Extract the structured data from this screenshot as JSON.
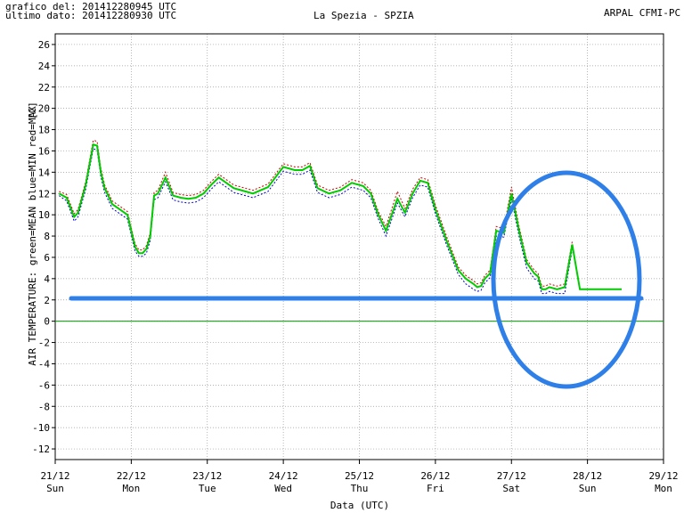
{
  "header": {
    "line1_label": "grafico del:",
    "line1_value": "201412280945 UTC",
    "line2_label": "ultimo dato:",
    "line2_value": "201412280930 UTC",
    "station": "La Spezia - SPZIA",
    "source": "ARPAL CFMI-PC"
  },
  "colors": {
    "mean": "#00cc00",
    "min": "#0000cc",
    "max": "#cc0000",
    "zero_line": "#009900",
    "grid": "#999999",
    "annotation": "#2f7fe8"
  },
  "chart_data": {
    "type": "line",
    "title": "La Spezia - SPZIA",
    "xlabel": "Data (UTC)",
    "ylabel": "AIR TEMPERATURE: green=MEAN  blue=MIN  red=MAX",
    "unit_label": "[C]",
    "ylim": [
      -13,
      27
    ],
    "yticks": [
      -12,
      -10,
      -8,
      -6,
      -4,
      -2,
      0,
      2,
      4,
      6,
      8,
      10,
      12,
      14,
      16,
      18,
      20,
      22,
      24,
      26
    ],
    "xlim": [
      0,
      8
    ],
    "xticks": [
      {
        "date": "21/12",
        "day": "Sun"
      },
      {
        "date": "22/12",
        "day": "Mon"
      },
      {
        "date": "23/12",
        "day": "Tue"
      },
      {
        "date": "24/12",
        "day": "Wed"
      },
      {
        "date": "25/12",
        "day": "Thu"
      },
      {
        "date": "26/12",
        "day": "Fri"
      },
      {
        "date": "27/12",
        "day": "Sat"
      },
      {
        "date": "28/12",
        "day": "Sun"
      },
      {
        "date": "29/12",
        "day": "Mon"
      }
    ],
    "grid": true,
    "series": [
      {
        "name": "MEAN",
        "color": "#00cc00",
        "x": [
          0.05,
          0.15,
          0.25,
          0.3,
          0.4,
          0.5,
          0.55,
          0.6,
          0.65,
          0.75,
          0.85,
          0.95,
          1.05,
          1.1,
          1.15,
          1.2,
          1.25,
          1.3,
          1.35,
          1.45,
          1.55,
          1.65,
          1.75,
          1.85,
          1.95,
          2.05,
          2.15,
          2.25,
          2.35,
          2.5,
          2.6,
          2.8,
          3.0,
          3.15,
          3.25,
          3.35,
          3.45,
          3.6,
          3.75,
          3.9,
          4.05,
          4.15,
          4.25,
          4.35,
          4.5,
          4.6,
          4.7,
          4.8,
          4.9,
          5.0,
          5.15,
          5.3,
          5.4,
          5.5,
          5.55,
          5.6,
          5.65,
          5.72,
          5.8,
          5.9,
          6.0,
          6.1,
          6.2,
          6.3,
          6.35,
          6.4,
          6.45,
          6.5,
          6.6,
          6.7,
          6.8,
          6.9,
          7.0,
          7.1,
          7.2,
          7.3,
          7.4,
          7.45
        ],
        "values": [
          12.0,
          11.6,
          9.8,
          10.2,
          12.8,
          16.6,
          16.5,
          14.0,
          12.5,
          11.0,
          10.5,
          10.0,
          7.0,
          6.4,
          6.4,
          6.8,
          8.0,
          11.8,
          12.0,
          13.5,
          11.8,
          11.6,
          11.5,
          11.6,
          12.0,
          12.8,
          13.5,
          13.0,
          12.5,
          12.2,
          12.0,
          12.6,
          14.5,
          14.2,
          14.2,
          14.6,
          12.5,
          12.0,
          12.3,
          13.0,
          12.7,
          12.0,
          10.0,
          8.5,
          11.5,
          10.2,
          12.0,
          13.2,
          13.0,
          10.5,
          7.5,
          4.8,
          4.0,
          3.5,
          3.2,
          3.3,
          4.0,
          4.5,
          8.5,
          8.3,
          12.0,
          8.5,
          5.5,
          4.5,
          4.2,
          3.0,
          3.0,
          3.2,
          3.0,
          3.2,
          7.2,
          3.0,
          3.0,
          3.0,
          3.0,
          3.0,
          3.0,
          3.0
        ],
        "values_note_trimmed": false
      },
      {
        "name": "MIN",
        "color": "#0000cc",
        "x": [
          0.05,
          0.15,
          0.25,
          0.3,
          0.4,
          0.5,
          0.55,
          0.6,
          0.65,
          0.75,
          0.85,
          0.95,
          1.05,
          1.1,
          1.15,
          1.2,
          1.25,
          1.3,
          1.35,
          1.45,
          1.55,
          1.65,
          1.75,
          1.85,
          1.95,
          2.05,
          2.15,
          2.25,
          2.35,
          2.5,
          2.6,
          2.8,
          3.0,
          3.15,
          3.25,
          3.35,
          3.45,
          3.6,
          3.75,
          3.9,
          4.05,
          4.15,
          4.25,
          4.35,
          4.5,
          4.6,
          4.7,
          4.8,
          4.9,
          5.0,
          5.15,
          5.3,
          5.4,
          5.5,
          5.55,
          5.6,
          5.65,
          5.72,
          5.8,
          5.9,
          6.0,
          6.1,
          6.2,
          6.3,
          6.35,
          6.4,
          6.45,
          6.5,
          6.6,
          6.7,
          6.8
        ],
        "values": [
          11.8,
          11.3,
          9.4,
          9.8,
          12.4,
          16.2,
          16.1,
          13.6,
          12.1,
          10.6,
          10.1,
          9.6,
          6.6,
          6.1,
          6.1,
          6.4,
          7.6,
          11.4,
          11.6,
          13.1,
          11.4,
          11.2,
          11.1,
          11.2,
          11.6,
          12.4,
          13.1,
          12.6,
          12.1,
          11.8,
          11.6,
          12.2,
          14.1,
          13.8,
          13.8,
          14.2,
          12.1,
          11.6,
          11.9,
          12.6,
          12.3,
          11.6,
          9.6,
          8.0,
          11.1,
          9.8,
          11.6,
          12.8,
          12.6,
          10.1,
          7.1,
          4.4,
          3.5,
          3.0,
          2.8,
          2.9,
          3.6,
          4.1,
          8.0,
          7.9,
          11.5,
          8.0,
          5.0,
          4.0,
          3.8,
          2.6,
          2.6,
          2.8,
          2.6,
          2.6,
          6.8
        ]
      },
      {
        "name": "MAX",
        "color": "#cc0000",
        "x": [
          0.05,
          0.15,
          0.25,
          0.3,
          0.4,
          0.5,
          0.55,
          0.6,
          0.65,
          0.75,
          0.85,
          0.95,
          1.05,
          1.1,
          1.15,
          1.2,
          1.25,
          1.3,
          1.35,
          1.45,
          1.55,
          1.65,
          1.75,
          1.85,
          1.95,
          2.05,
          2.15,
          2.25,
          2.35,
          2.5,
          2.6,
          2.8,
          3.0,
          3.15,
          3.25,
          3.35,
          3.45,
          3.6,
          3.75,
          3.9,
          4.05,
          4.15,
          4.25,
          4.35,
          4.5,
          4.6,
          4.7,
          4.8,
          4.9,
          5.0,
          5.15,
          5.3,
          5.4,
          5.5,
          5.55,
          5.6,
          5.65,
          5.72,
          5.8,
          5.9,
          6.0,
          6.1,
          6.2,
          6.3,
          6.35,
          6.4,
          6.45,
          6.5,
          6.6,
          6.7,
          6.8
        ],
        "values": [
          12.2,
          11.9,
          10.1,
          10.5,
          13.1,
          17.0,
          16.9,
          14.4,
          12.8,
          11.3,
          10.8,
          10.3,
          7.3,
          6.7,
          6.7,
          7.1,
          8.3,
          12.1,
          12.3,
          14.0,
          12.1,
          11.9,
          11.8,
          11.9,
          12.3,
          13.1,
          13.8,
          13.3,
          12.8,
          12.5,
          12.3,
          12.9,
          14.8,
          14.5,
          14.5,
          14.9,
          12.8,
          12.3,
          12.6,
          13.3,
          13.0,
          12.3,
          10.3,
          8.9,
          12.2,
          10.6,
          12.4,
          13.5,
          13.3,
          10.9,
          7.9,
          5.1,
          4.3,
          3.8,
          3.5,
          3.6,
          4.3,
          4.8,
          8.9,
          8.7,
          12.6,
          8.9,
          5.8,
          4.8,
          4.5,
          3.3,
          3.3,
          3.5,
          3.3,
          3.5,
          7.5
        ]
      }
    ]
  }
}
